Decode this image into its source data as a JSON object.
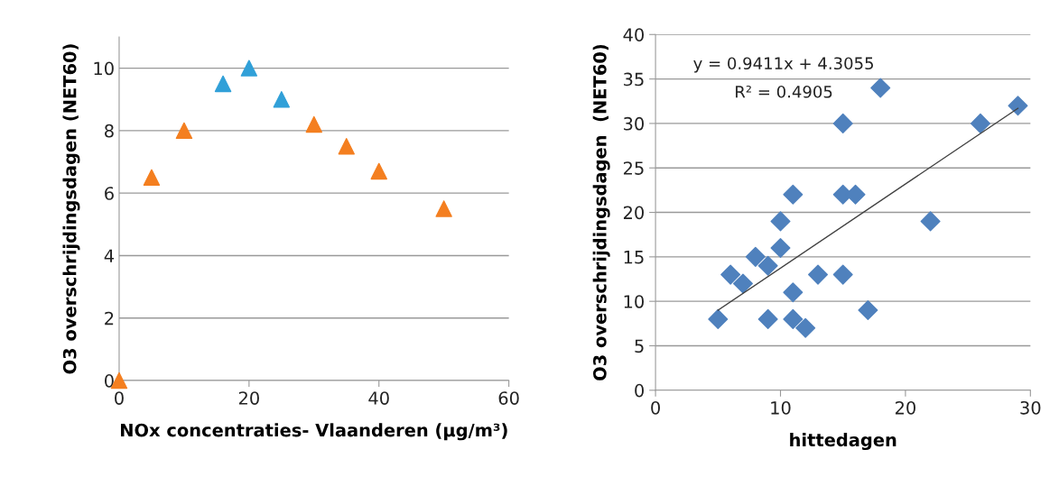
{
  "chart_data": [
    {
      "type": "scatter",
      "xlabel": "NOx concentraties- Vlaanderen (µg/m³)",
      "ylabel": "O3 overschrijdingsdagen (NET60)",
      "xlim": [
        0,
        60
      ],
      "xticks": [
        0,
        20,
        40,
        60
      ],
      "ylim": [
        0,
        11
      ],
      "yticks": [
        0,
        2,
        4,
        6,
        8,
        10
      ],
      "grid": "y",
      "legend": false,
      "marker": "triangle",
      "series": [
        {
          "color": "#f47f20",
          "x": [
            0,
            5,
            10,
            30,
            35,
            40,
            50
          ],
          "values": [
            0,
            6.5,
            8,
            8.2,
            7.5,
            6.7,
            5.5
          ]
        },
        {
          "color": "#31a0d8",
          "x": [
            16,
            20,
            25
          ],
          "values": [
            9.5,
            10,
            9
          ]
        }
      ]
    },
    {
      "type": "scatter",
      "xlabel": "hittedagen",
      "ylabel": "O3 overschrijdingsdagen  (NET60)",
      "xlim": [
        0,
        30
      ],
      "xticks": [
        0,
        10,
        20,
        30
      ],
      "ylim": [
        0,
        40
      ],
      "yticks": [
        0,
        5,
        10,
        15,
        20,
        25,
        30,
        35,
        40
      ],
      "grid": "y",
      "legend": false,
      "annotations": [
        "y = 0.9411x + 4.3055",
        "R² = 0.4905"
      ],
      "series": [
        {
          "marker": "diamond",
          "color": "#4f81bd",
          "x": [
            5,
            6,
            7,
            8,
            9,
            9,
            10,
            10,
            11,
            11,
            11,
            12,
            13,
            15,
            15,
            15,
            16,
            17,
            18,
            22,
            26,
            29
          ],
          "values": [
            8,
            13,
            12,
            15,
            14,
            8,
            19,
            16,
            22,
            11,
            8,
            7,
            13,
            30,
            22,
            13,
            22,
            9,
            34,
            19,
            30,
            32
          ]
        },
        {
          "type": "line",
          "color": "#404040",
          "x": [
            5,
            29
          ],
          "values": [
            9.0,
            31.7
          ]
        }
      ]
    }
  ]
}
